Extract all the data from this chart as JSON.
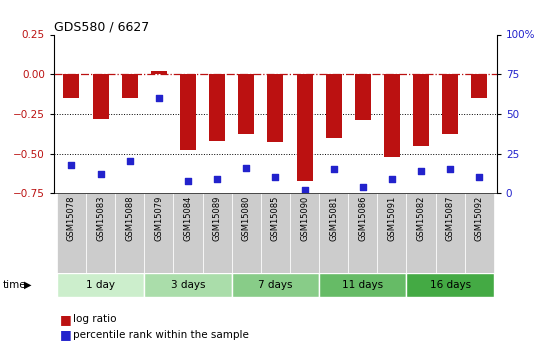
{
  "title": "GDS580 / 6627",
  "samples": [
    "GSM15078",
    "GSM15083",
    "GSM15088",
    "GSM15079",
    "GSM15084",
    "GSM15089",
    "GSM15080",
    "GSM15085",
    "GSM15090",
    "GSM15081",
    "GSM15086",
    "GSM15091",
    "GSM15082",
    "GSM15087",
    "GSM15092"
  ],
  "log_ratio": [
    -0.15,
    -0.28,
    -0.15,
    0.02,
    -0.48,
    -0.42,
    -0.38,
    -0.43,
    -0.67,
    -0.4,
    -0.29,
    -0.52,
    -0.45,
    -0.38,
    -0.15
  ],
  "percentile_rank": [
    18,
    12,
    20,
    60,
    8,
    9,
    16,
    10,
    2,
    15,
    4,
    9,
    14,
    15,
    10
  ],
  "bar_color": "#BB1111",
  "dot_color": "#2222CC",
  "groups": [
    {
      "label": "1 day",
      "start": 0,
      "end": 3,
      "color": "#CCEECC"
    },
    {
      "label": "3 days",
      "start": 3,
      "end": 6,
      "color": "#AADDAA"
    },
    {
      "label": "7 days",
      "start": 6,
      "end": 9,
      "color": "#88CC88"
    },
    {
      "label": "11 days",
      "start": 9,
      "end": 12,
      "color": "#66BB66"
    },
    {
      "label": "16 days",
      "start": 12,
      "end": 15,
      "color": "#44AA44"
    }
  ],
  "ylim_left": [
    -0.75,
    0.25
  ],
  "ylim_right": [
    0,
    100
  ],
  "yticks_left": [
    0.25,
    0,
    -0.25,
    -0.5,
    -0.75
  ],
  "yticks_right": [
    100,
    75,
    50,
    25,
    0
  ],
  "sample_box_color": "#CCCCCC",
  "sample_box_edge": "#FFFFFF",
  "background_color": "#FFFFFF"
}
